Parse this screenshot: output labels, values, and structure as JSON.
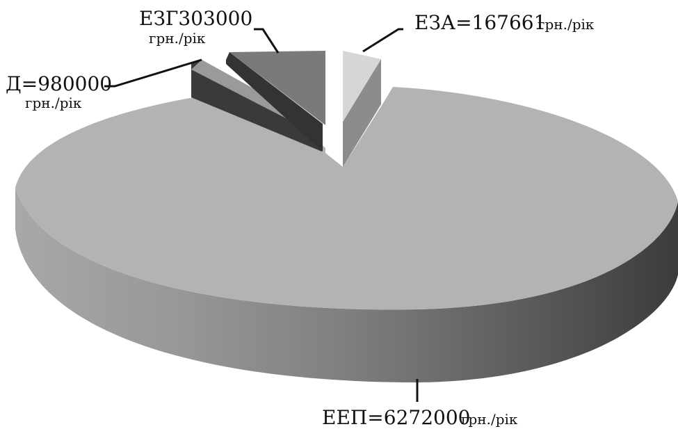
{
  "chart_data": {
    "type": "pie",
    "style": "3d-exploded",
    "unit": "грн./рік",
    "slices": [
      {
        "label": "ЕЕП",
        "value": 6272000,
        "text": "ЕЕП=6272000",
        "unit": "грн./рік",
        "color": "#b3b3b3",
        "side": "#8a8a8a"
      },
      {
        "label": "Д",
        "value": 980000,
        "text": "Д=980000",
        "unit": "грн./рік",
        "color": "#9a9a9a",
        "side": "#3a3a3a"
      },
      {
        "label": "ЕЗГ",
        "value": 303000,
        "text": "ЕЗГ303000",
        "unit": "грн./рік",
        "color": "#7a7a7a",
        "side": "#333333"
      },
      {
        "label": "ЕЗА",
        "value": 167661,
        "text": "ЕЗА=167661",
        "unit": "грн./рік",
        "color": "#d6d6d6",
        "side": "#8c8c8c"
      }
    ]
  }
}
